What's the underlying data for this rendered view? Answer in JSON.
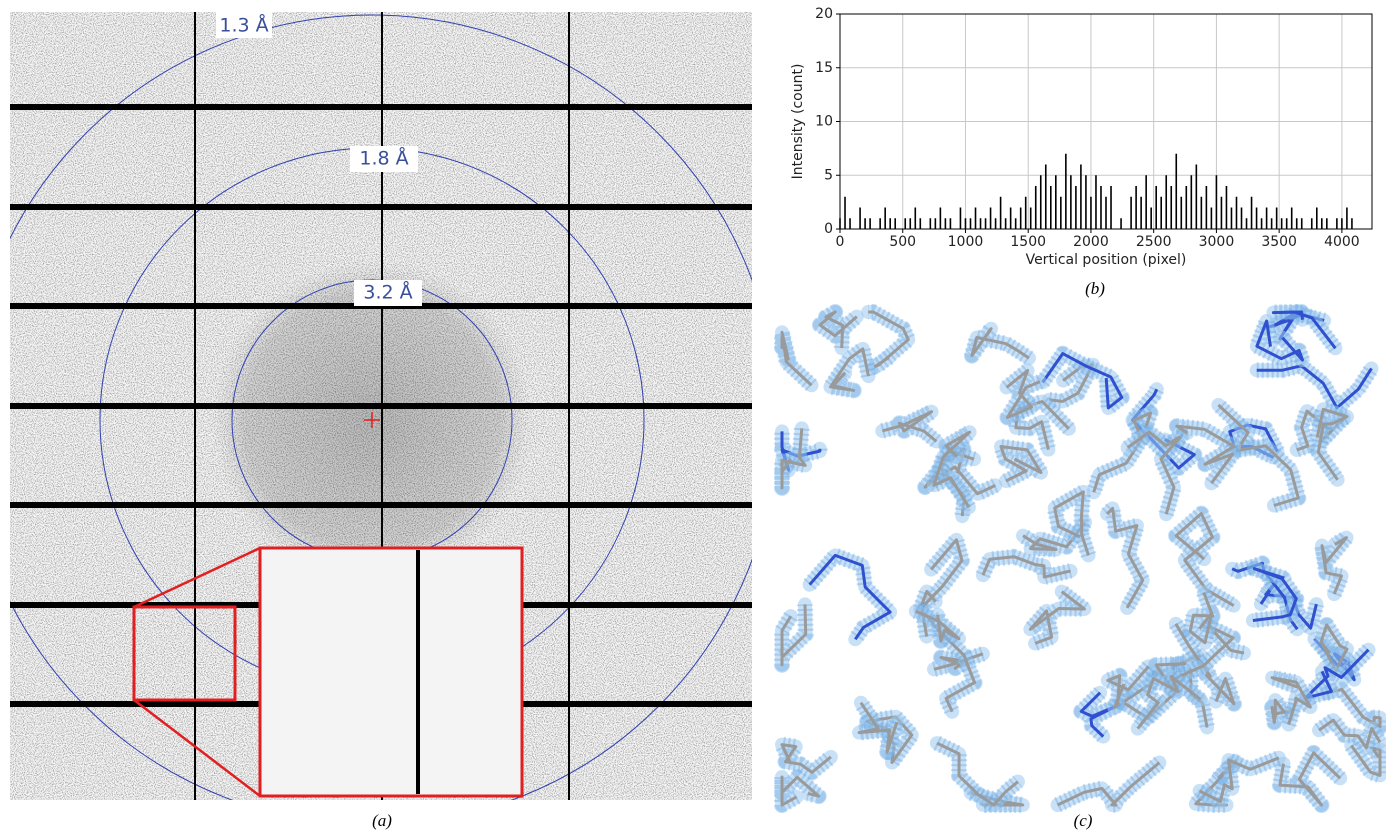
{
  "panels": [
    {
      "label": "(a)"
    },
    {
      "label": "(b)"
    },
    {
      "label": "(c)"
    }
  ],
  "diffraction": {
    "rings": [
      {
        "label": "1.3 Å"
      },
      {
        "label": "1.8 Å"
      },
      {
        "label": "3.2 Å"
      }
    ]
  },
  "chart_data": {
    "type": "bar",
    "xlabel": "Vertical position (pixel)",
    "ylabel": "Intensity (count)",
    "color": "#000000",
    "grid": true,
    "xlim": [
      0,
      4240
    ],
    "ylim": [
      0,
      20
    ],
    "xticks": [
      0,
      500,
      1000,
      1500,
      2000,
      2500,
      3000,
      3500,
      4000
    ],
    "yticks": [
      0,
      5,
      10,
      15,
      20
    ],
    "x": [
      0,
      40,
      80,
      120,
      160,
      200,
      240,
      280,
      320,
      360,
      400,
      440,
      480,
      520,
      560,
      600,
      640,
      680,
      720,
      760,
      800,
      840,
      880,
      920,
      960,
      1000,
      1040,
      1080,
      1120,
      1160,
      1200,
      1240,
      1280,
      1320,
      1360,
      1400,
      1440,
      1480,
      1520,
      1560,
      1600,
      1640,
      1680,
      1720,
      1760,
      1800,
      1840,
      1880,
      1920,
      1960,
      2000,
      2040,
      2080,
      2120,
      2160,
      2200,
      2240,
      2280,
      2320,
      2360,
      2400,
      2440,
      2480,
      2520,
      2560,
      2600,
      2640,
      2680,
      2720,
      2760,
      2800,
      2840,
      2880,
      2920,
      2960,
      3000,
      3040,
      3080,
      3120,
      3160,
      3200,
      3240,
      3280,
      3320,
      3360,
      3400,
      3440,
      3480,
      3520,
      3560,
      3600,
      3640,
      3680,
      3720,
      3760,
      3800,
      3840,
      3880,
      3920,
      3960,
      4000,
      4040,
      4080
    ],
    "values": [
      1,
      3,
      1,
      0,
      2,
      1,
      1,
      0,
      1,
      2,
      1,
      1,
      0,
      1,
      1,
      2,
      1,
      0,
      1,
      1,
      2,
      1,
      1,
      0,
      2,
      1,
      1,
      2,
      1,
      1,
      2,
      1,
      3,
      1,
      2,
      1,
      2,
      3,
      2,
      4,
      5,
      6,
      4,
      5,
      3,
      7,
      5,
      4,
      6,
      5,
      3,
      5,
      4,
      3,
      4,
      0,
      1,
      0,
      3,
      4,
      3,
      5,
      2,
      4,
      3,
      5,
      4,
      7,
      3,
      4,
      5,
      6,
      3,
      4,
      2,
      5,
      3,
      4,
      2,
      3,
      2,
      1,
      3,
      2,
      1,
      2,
      1,
      2,
      1,
      1,
      2,
      1,
      1,
      0,
      1,
      2,
      1,
      1,
      0,
      1,
      1,
      2,
      1
    ]
  }
}
